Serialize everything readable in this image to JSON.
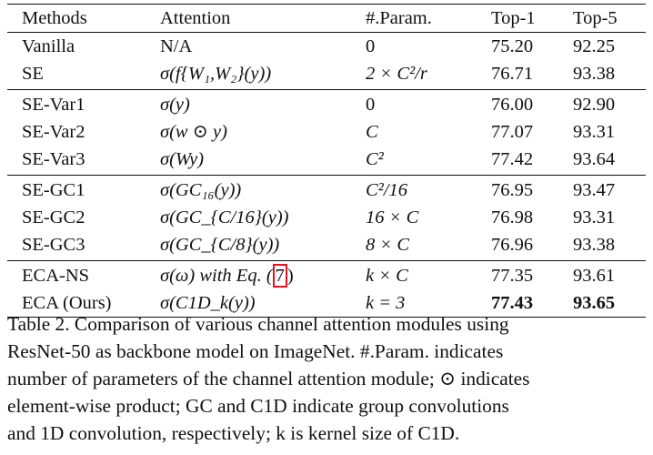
{
  "table": {
    "headers": [
      "Methods",
      "Attention",
      "#.Param.",
      "Top-1",
      "Top-5"
    ],
    "groups": [
      [
        {
          "method": "Vanilla",
          "attention": "N/A",
          "params": "0",
          "top1": "75.20",
          "top5": "92.25"
        },
        {
          "method": "SE",
          "attention": "σ(f{W₁,W₂}(y))",
          "params": "2 × C²/r",
          "top1": "76.71",
          "top5": "93.38"
        }
      ],
      [
        {
          "method": "SE-Var1",
          "attention": "σ(y)",
          "params": "0",
          "top1": "76.00",
          "top5": "92.90"
        },
        {
          "method": "SE-Var2",
          "attention": "σ(w ⊙ y)",
          "params": "C",
          "top1": "77.07",
          "top5": "93.31"
        },
        {
          "method": "SE-Var3",
          "attention": "σ(Wy)",
          "params": "C²",
          "top1": "77.42",
          "top5": "93.64"
        }
      ],
      [
        {
          "method": "SE-GC1",
          "attention": "σ(GC₁₆(y))",
          "params": "C²/16",
          "top1": "76.95",
          "top5": "93.47"
        },
        {
          "method": "SE-GC2",
          "attention": "σ(GC_{C/16}(y))",
          "params": "16 × C",
          "top1": "76.98",
          "top5": "93.31"
        },
        {
          "method": "SE-GC3",
          "attention": "σ(GC_{C/8}(y))",
          "params": "8 × C",
          "top1": "76.96",
          "top5": "93.38"
        }
      ],
      [
        {
          "method": "ECA-NS",
          "attention_prefix": "σ(ω) with Eq. (",
          "attention_ref": "7",
          "attention_suffix": ")",
          "params": "k × C",
          "top1": "77.35",
          "top5": "93.61"
        },
        {
          "method": "ECA (Ours)",
          "attention": "σ(C1D_k(y))",
          "params": "k = 3",
          "top1": "77.43",
          "top5": "93.65",
          "bold_top": true
        }
      ]
    ]
  },
  "caption": {
    "lines": [
      "Table 2. Comparison of various channel attention modules using",
      "ResNet-50 as backbone model on ImageNet. #.Param. indicates",
      "number of parameters of the channel attention module; ⊙ indicates",
      "element-wise product; GC and C1D indicate group convolutions",
      "and 1D convolution, respectively; k is kernel size of C1D."
    ]
  },
  "colors": {
    "highlight_box": "#e0141c",
    "text": "#111111"
  }
}
